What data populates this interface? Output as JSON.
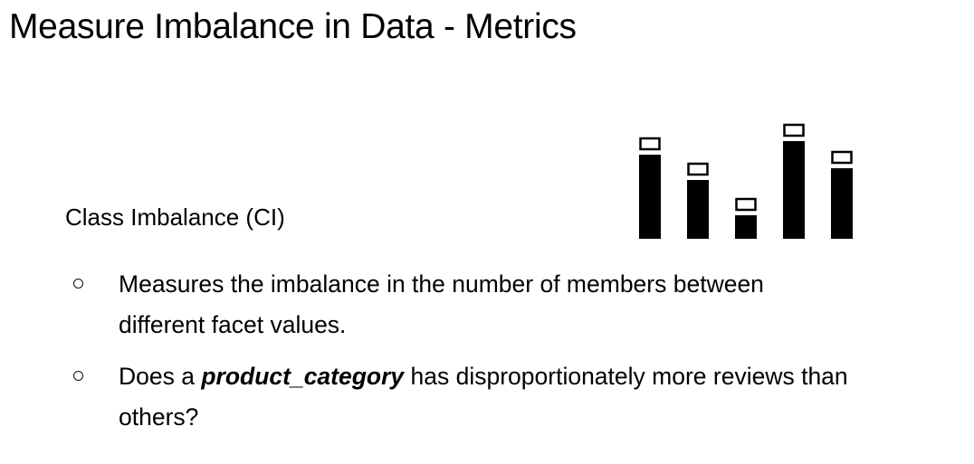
{
  "title": "Measure Imbalance in Data - Metrics",
  "section_heading": "Class Imbalance (CI)",
  "illustration": {
    "icon": "bar-chart-icon",
    "bar_levels": [
      0.62,
      0.43,
      0.17,
      0.72,
      0.52
    ],
    "fill_color": "#000000",
    "cap_color": "#ffffff"
  },
  "bullets": [
    {
      "line1": "Measures the imbalance in the number of members between",
      "line2": "different facet values."
    },
    {
      "line1_prefix": "Does a ",
      "line1_emphasis": "product_category",
      "line1_suffix": " has disproportionately more reviews than",
      "line2": "others?"
    }
  ]
}
